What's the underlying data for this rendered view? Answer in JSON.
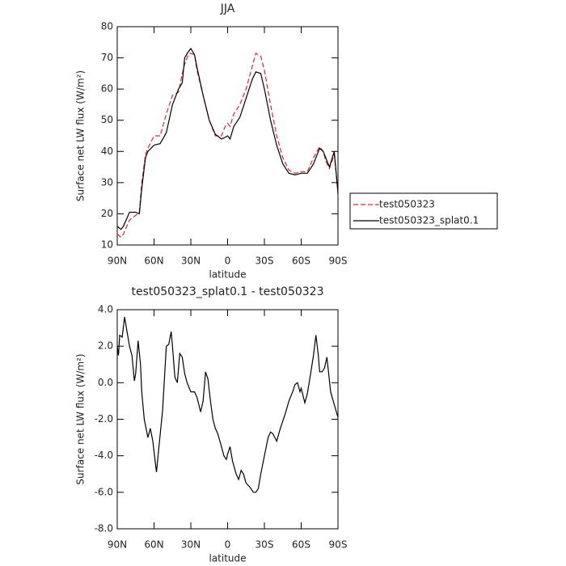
{
  "chart_data": [
    {
      "type": "line",
      "title": "JJA",
      "xlabel": "latitude",
      "ylabel": "Surface net LW flux (W/m²)",
      "xlim": [
        90,
        -90
      ],
      "xticks": [
        {
          "value": 90,
          "label": "90N"
        },
        {
          "value": 60,
          "label": "60N"
        },
        {
          "value": 30,
          "label": "30N"
        },
        0,
        {
          "value": -30,
          "label": "30S"
        },
        {
          "value": -60,
          "label": "60S"
        },
        {
          "value": -90,
          "label": "90S"
        }
      ],
      "ylim": [
        10,
        80
      ],
      "yticks": [
        10,
        20,
        30,
        40,
        50,
        60,
        70,
        80
      ],
      "legend": "right",
      "x": [
        90,
        87,
        85,
        80,
        75,
        72,
        70,
        67,
        65,
        60,
        55,
        50,
        45,
        40,
        37,
        35,
        32,
        30,
        27,
        25,
        20,
        15,
        10,
        5,
        2,
        0,
        -2,
        -5,
        -10,
        -15,
        -20,
        -23,
        -27,
        -30,
        -35,
        -40,
        -45,
        -50,
        -55,
        -60,
        -65,
        -70,
        -75,
        -78,
        -80,
        -83,
        -87,
        -90
      ],
      "series": [
        {
          "name": "test050323",
          "color": "#e8262a",
          "linestyle": "dashed",
          "values": [
            13.5,
            12.5,
            13.5,
            18,
            19.5,
            20.5,
            30,
            39,
            41,
            45,
            45,
            52,
            58,
            59,
            65,
            68,
            71,
            71.5,
            71,
            66,
            58,
            50,
            45,
            45,
            48,
            49,
            48,
            52,
            55,
            60,
            67,
            71.5,
            70.5,
            66,
            55,
            45,
            38,
            34,
            33,
            33.5,
            33.5,
            38,
            41.5,
            40,
            37,
            34.5,
            39,
            27
          ]
        },
        {
          "name": "test050323_splat0.1",
          "color": "#000000",
          "linestyle": "solid",
          "values": [
            16,
            15,
            16,
            20.5,
            20.5,
            20,
            28,
            38,
            40,
            42,
            42.5,
            46,
            55,
            60,
            62,
            70,
            72,
            73,
            71,
            67,
            58,
            50,
            45.5,
            44,
            44.5,
            45,
            44,
            48,
            51,
            57,
            63,
            65.5,
            65,
            60,
            50,
            42,
            36,
            33,
            32.5,
            33,
            33,
            36,
            41,
            40,
            38,
            35,
            40,
            26.5
          ]
        }
      ]
    },
    {
      "type": "line",
      "title": "test050323_splat0.1 - test050323",
      "xlabel": "latitude",
      "ylabel": "Surface net LW flux (W/m²)",
      "xlim": [
        90,
        -90
      ],
      "xticks": [
        {
          "value": 90,
          "label": "90N"
        },
        {
          "value": 60,
          "label": "60N"
        },
        {
          "value": 30,
          "label": "30N"
        },
        0,
        {
          "value": -30,
          "label": "30S"
        },
        {
          "value": -60,
          "label": "60S"
        },
        {
          "value": -90,
          "label": "90S"
        }
      ],
      "ylim": [
        -8,
        4
      ],
      "yticks": [
        {
          "value": -8,
          "label": "-8.0"
        },
        {
          "value": -6,
          "label": "-6.0"
        },
        {
          "value": -4,
          "label": "-4.0"
        },
        {
          "value": -2,
          "label": "-2.0"
        },
        {
          "value": 0,
          "label": "0.0"
        },
        {
          "value": 2,
          "label": "2.0"
        },
        {
          "value": 4,
          "label": "4.0"
        }
      ],
      "x": [
        90,
        89,
        88,
        86,
        84,
        82,
        80,
        78,
        76,
        75,
        73,
        71,
        70,
        68,
        65,
        63,
        61,
        58,
        56,
        53,
        50,
        48,
        46,
        45,
        43,
        41,
        39,
        37,
        35,
        33,
        30,
        27,
        25,
        22,
        20,
        18,
        16,
        14,
        12,
        10,
        8,
        5,
        3,
        1,
        0,
        -2,
        -4,
        -7,
        -9,
        -11,
        -13,
        -15,
        -18,
        -21,
        -23,
        -25,
        -27,
        -30,
        -33,
        -35,
        -37,
        -40,
        -43,
        -47,
        -50,
        -53,
        -55,
        -57,
        -59,
        -60,
        -63,
        -65,
        -67,
        -70,
        -72,
        -74,
        -75,
        -77,
        -79,
        -81,
        -84,
        -87,
        -90
      ],
      "series": [
        {
          "name": "test050323_splat0.1 - test050323",
          "color": "#000000",
          "linestyle": "solid",
          "values": [
            2.0,
            1.5,
            2.6,
            2.5,
            3.6,
            2.8,
            2.0,
            1.5,
            0.1,
            0.5,
            2.3,
            1.0,
            -0.5,
            -2.0,
            -3.0,
            -2.5,
            -3.2,
            -4.9,
            -3.5,
            -1.5,
            2.0,
            2.1,
            2.8,
            2.0,
            0.3,
            0.0,
            1.6,
            1.4,
            0.5,
            0.0,
            -0.5,
            -0.5,
            -0.8,
            -1.6,
            -1.0,
            0.6,
            0.2,
            -1.0,
            -2.0,
            -2.5,
            -2.8,
            -3.5,
            -4.0,
            -4.2,
            -3.9,
            -3.5,
            -4.3,
            -5.0,
            -5.3,
            -4.8,
            -5.0,
            -5.5,
            -5.7,
            -6.0,
            -6.0,
            -5.8,
            -5.0,
            -4.0,
            -3.0,
            -2.7,
            -2.8,
            -3.2,
            -2.5,
            -1.7,
            -1.0,
            -0.5,
            -0.1,
            0.0,
            -0.5,
            -0.3,
            -1.1,
            -0.6,
            0.2,
            1.5,
            2.6,
            1.5,
            0.6,
            0.6,
            0.8,
            1.4,
            -0.5,
            -1.2,
            -1.9
          ]
        }
      ]
    }
  ]
}
